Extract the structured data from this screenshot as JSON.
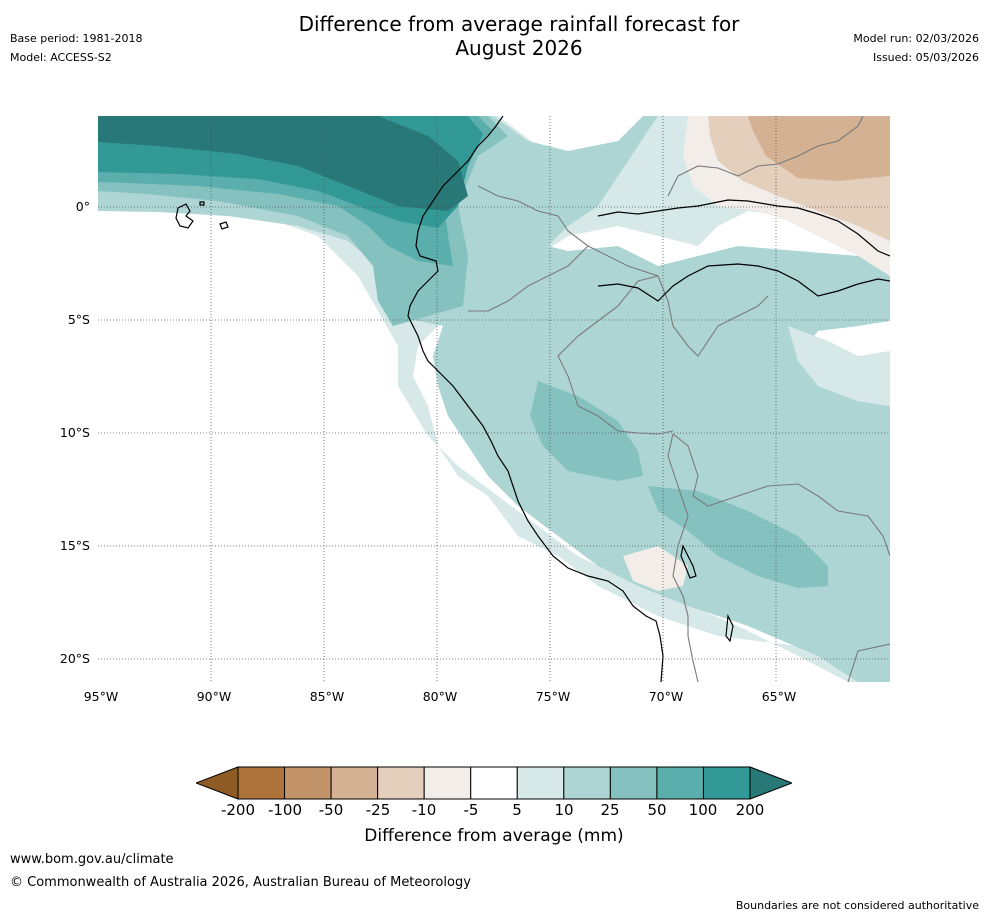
{
  "title": {
    "line1": "Difference from average rainfall forecast for",
    "line2": "August 2026"
  },
  "meta": {
    "base_period": "Base period: 1981-2018",
    "model": "Model: ACCESS-S2",
    "model_run": "Model run: 02/03/2026",
    "issued": "Issued: 05/03/2026"
  },
  "axes": {
    "latitudes": [
      "0°",
      "5°S",
      "10°S",
      "15°S",
      "20°S"
    ],
    "longitudes": [
      "95°W",
      "90°W",
      "85°W",
      "80°W",
      "75°W",
      "70°W",
      "65°W"
    ]
  },
  "legend": {
    "title": "Difference from average (mm)",
    "ticks": [
      "-200",
      "-100",
      "-50",
      "-25",
      "-10",
      "-5",
      "5",
      "10",
      "25",
      "50",
      "100",
      "200"
    ],
    "colors": {
      "below_200": "#8f5b25",
      "m200_m100": "#ad733a",
      "m100_m50": "#c39469",
      "m50_m25": "#d3b192",
      "m25_m10": "#e4cfbd",
      "m10_m5": "#f2ede9",
      "m5_5": "#ffffff",
      "p5_10": "#d6e9e8",
      "p10_25": "#acd5d4",
      "p25_50": "#84c1bf",
      "p50_100": "#5aaeab",
      "p100_200": "#329996",
      "above_200": "#277876"
    }
  },
  "footer": {
    "url": "www.bom.gov.au/climate",
    "copyright": "© Commonwealth of Australia 2026, Australian Bureau of Meteorology",
    "disclaimer": "Boundaries are not considered authoritative"
  }
}
